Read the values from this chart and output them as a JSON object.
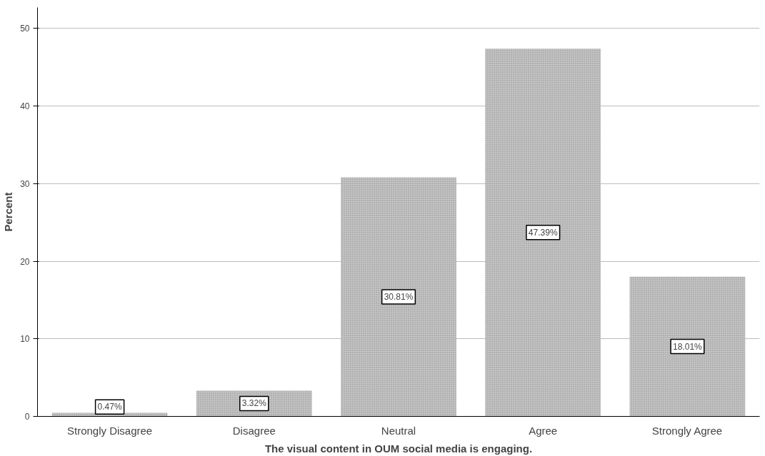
{
  "chart_data": {
    "type": "bar",
    "xlabel": "The visual content in OUM social media is engaging.",
    "ylabel": "Percent",
    "categories": [
      "Strongly Disagree",
      "Disagree",
      "Neutral",
      "Agree",
      "Strongly Agree"
    ],
    "values": [
      0.47,
      3.32,
      30.81,
      47.39,
      18.01
    ],
    "value_labels": [
      "0.47%",
      "3.32%",
      "30.81%",
      "47.39%",
      "18.01%"
    ],
    "color": "#c4c4c4",
    "ylim": [
      0,
      52.7
    ],
    "yticks": [
      0,
      10,
      20,
      30,
      40,
      50
    ],
    "grid": "y"
  }
}
